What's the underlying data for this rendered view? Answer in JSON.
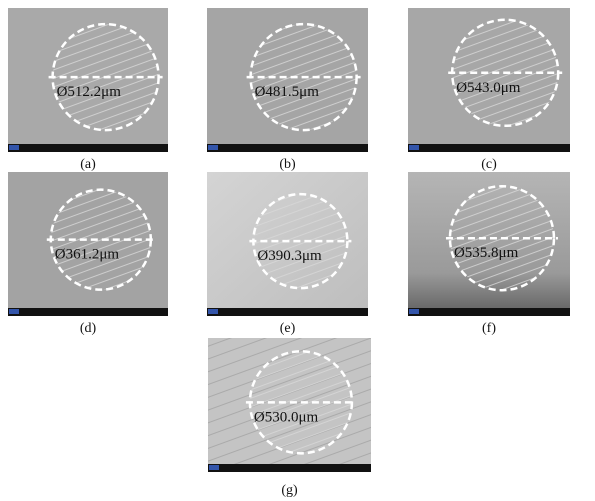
{
  "panels": [
    {
      "label": "(a)",
      "diameter": "Ø512.2μm"
    },
    {
      "label": "(b)",
      "diameter": "Ø481.5μm"
    },
    {
      "label": "(c)",
      "diameter": "Ø543.0μm"
    },
    {
      "label": "(d)",
      "diameter": "Ø361.2μm"
    },
    {
      "label": "(e)",
      "diameter": "Ø390.3μm"
    },
    {
      "label": "(f)",
      "diameter": "Ø535.8μm"
    },
    {
      "label": "(g)",
      "diameter": "Ø530.0μm"
    }
  ]
}
